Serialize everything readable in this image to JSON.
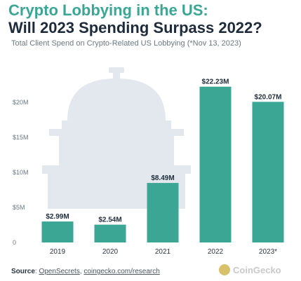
{
  "header": {
    "title_line1": "Crypto Lobbying in the US:",
    "title_line2": "Will 2023 Spending Surpass 2022?",
    "subtitle": "Total Client Spend on Crypto-Related US Lobbying (*Nov 13, 2023)"
  },
  "chart_data": {
    "type": "bar",
    "categories": [
      "2019",
      "2020",
      "2021",
      "2022",
      "2023*"
    ],
    "values": [
      2.99,
      2.54,
      8.49,
      22.23,
      20.07
    ],
    "data_labels": [
      "$2.99M",
      "$2.54M",
      "$8.49M",
      "$22.23M",
      "$20.07M"
    ],
    "y_ticks": [
      0,
      5,
      10,
      15,
      20
    ],
    "y_tick_labels": [
      "0",
      "$5M",
      "$10M",
      "$15M",
      "$20M"
    ],
    "ylim": [
      0,
      24
    ],
    "grid": false,
    "bar_color": "#3aa693",
    "xlabel": "",
    "ylabel": ""
  },
  "footer": {
    "source_label": "Source",
    "source_sep": ": ",
    "source_link1": "OpenSecrets",
    "source_comma": ", ",
    "source_link2": "coingecko.com/research",
    "brand": "CoinGecko"
  }
}
